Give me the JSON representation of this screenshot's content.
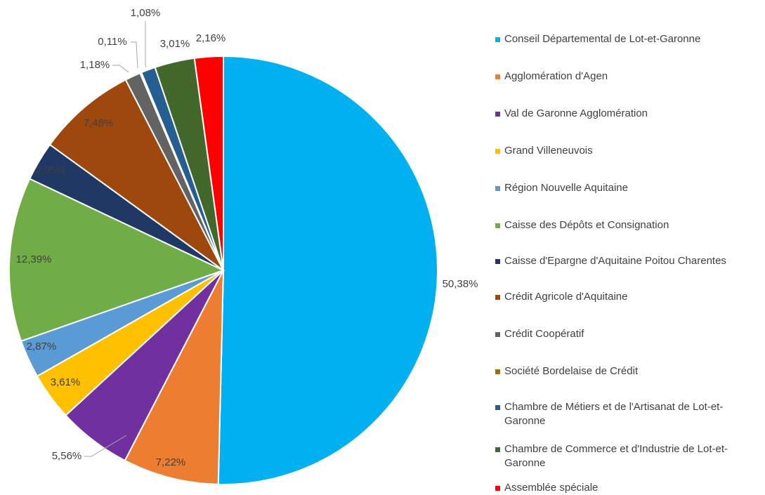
{
  "chart_data": {
    "type": "pie",
    "categories": [
      "Conseil Départemental de Lot-et-Garonne",
      "Agglomération d'Agen",
      "Val de Garonne Agglomération",
      "Grand Villeneuvois",
      "Région Nouvelle Aquitaine",
      "Caisse des Dépôts et Consignation",
      "Caisse d'Epargne d'Aquitaine Poitou Charentes",
      "Crédit Agricole d'Aquitaine",
      "Crédit Coopératif",
      "Société Bordelaise de Crédit",
      "Chambre de Métiers et de l'Artisanat de Lot-et-Garonne",
      "Chambre de Commerce et d'Industrie de Lot-et-Garonne",
      "Assemblée spéciale"
    ],
    "values": [
      50.38,
      7.22,
      5.56,
      3.61,
      2.87,
      12.39,
      2.95,
      7.48,
      1.18,
      0.11,
      1.08,
      3.01,
      2.16
    ],
    "value_labels": [
      "50,38%",
      "7,22%",
      "5,56%",
      "3,61%",
      "2,87%",
      "12,39%",
      "2,95%",
      "7,48%",
      "1,18%",
      "0,11%",
      "1,08%",
      "3,01%",
      "2,16%"
    ],
    "colors": [
      "#00b0f0",
      "#ed7d31",
      "#7030a0",
      "#ffc000",
      "#5b9bd5",
      "#70ad47",
      "#203864",
      "#9e480e",
      "#636363",
      "#997300",
      "#255e91",
      "#43682b",
      "#ff0000"
    ]
  }
}
